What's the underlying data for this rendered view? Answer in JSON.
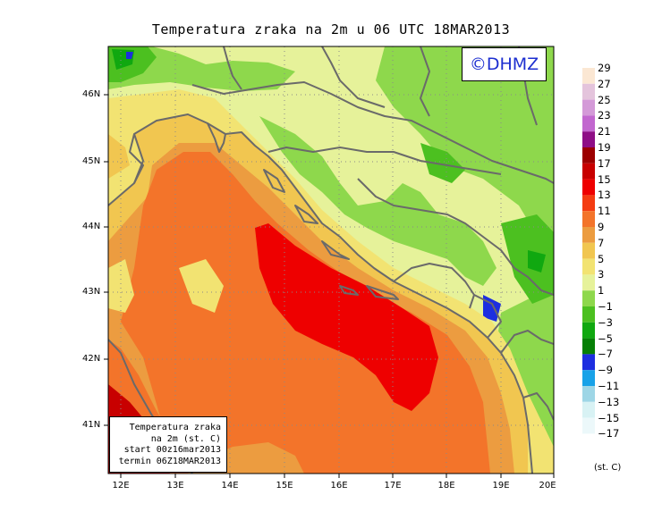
{
  "title": "Temperatura zraka na 2m u 06 UTC 18MAR2013",
  "logo": "©DHMZ",
  "infobox": {
    "line1": "Temperatura zraka",
    "line2": "na 2m (st. C)",
    "line3": "start 00z16mar2013",
    "line4": "termin 06Z18MAR2013"
  },
  "lat_labels": [
    "46N",
    "45N",
    "44N",
    "43N",
    "42N",
    "41N"
  ],
  "lon_labels": [
    "12E",
    "13E",
    "14E",
    "15E",
    "16E",
    "17E",
    "18E",
    "19E",
    "20E"
  ],
  "legend": {
    "unit": "(st. C)",
    "labels": [
      "29",
      "27",
      "25",
      "23",
      "21",
      "19",
      "17",
      "15",
      "13",
      "11",
      "9",
      "7",
      "5",
      "3",
      "1",
      "−1",
      "−3",
      "−5",
      "−7",
      "−9",
      "−11",
      "−13",
      "−15",
      "−17"
    ],
    "colors": [
      "#fbe7d3",
      "#e4c4dc",
      "#d49ad8",
      "#c267cf",
      "#8e0e86",
      "#9c0000",
      "#c80000",
      "#ee0000",
      "#f43c12",
      "#f3742a",
      "#ec9c40",
      "#f1c650",
      "#f2e372",
      "#e6f29a",
      "#8ed84c",
      "#4cc020",
      "#10a810",
      "#068006",
      "#1d2ee0",
      "#18a2e8",
      "#9ed6e6",
      "#d8f2f4",
      "#ecf8fa"
    ]
  },
  "colors": {
    "border_lines": "#6a6a6a",
    "grid": "#8a8a8a",
    "logo_text": "#1d2fd0"
  }
}
